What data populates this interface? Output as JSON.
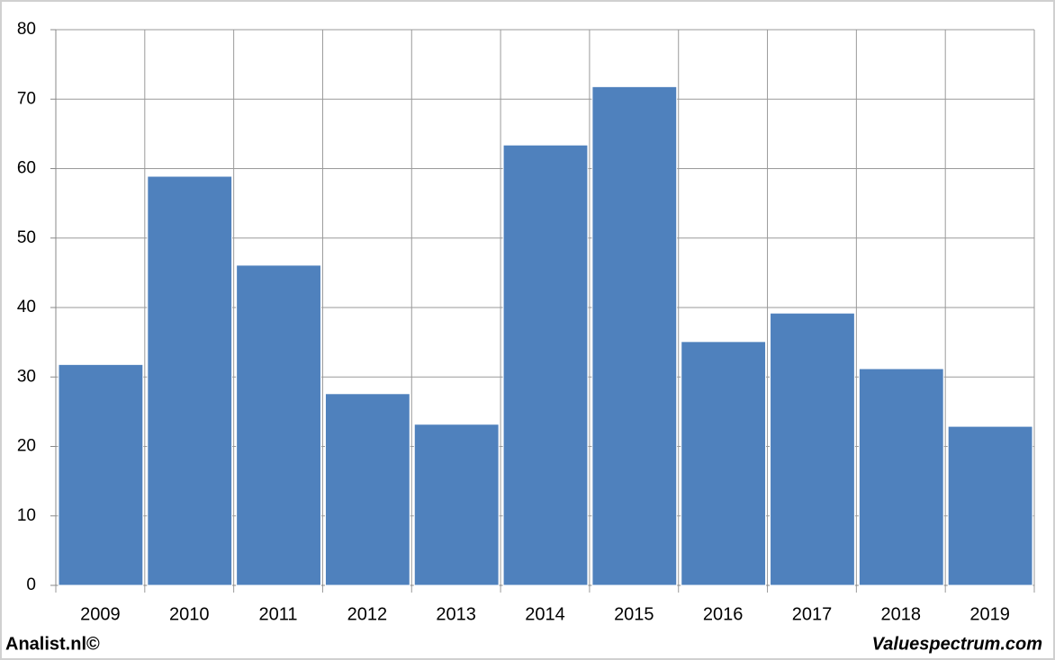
{
  "chart_data": {
    "type": "bar",
    "categories": [
      "2009",
      "2010",
      "2011",
      "2012",
      "2013",
      "2014",
      "2015",
      "2016",
      "2017",
      "2018",
      "2019"
    ],
    "values": [
      31.8,
      58.9,
      46.1,
      27.6,
      23.2,
      63.4,
      71.8,
      35.1,
      39.2,
      31.2,
      22.9
    ],
    "color": "#4f81bd",
    "ylim": [
      0,
      80
    ],
    "yticks": [
      0,
      10,
      20,
      30,
      40,
      50,
      60,
      70,
      80
    ],
    "grid": true,
    "credits": [
      "Analist.nl©",
      "Valuespectrum.com"
    ]
  }
}
